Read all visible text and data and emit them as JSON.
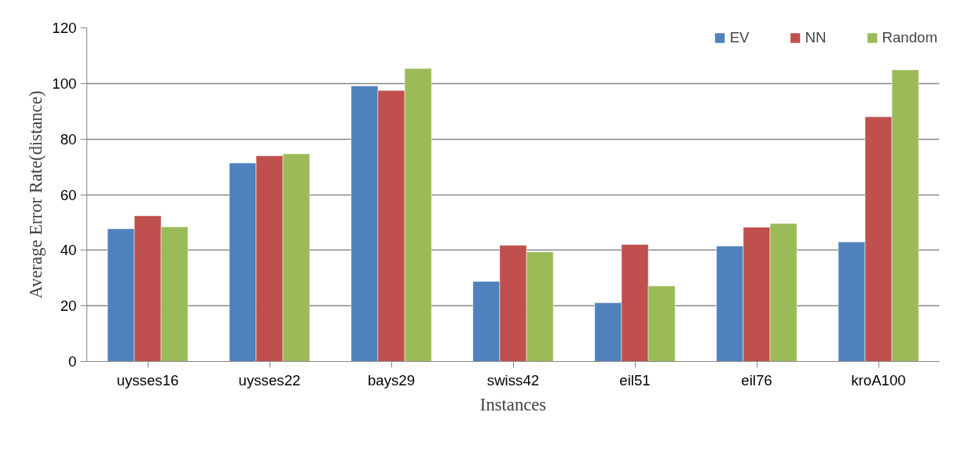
{
  "chart_data": {
    "type": "bar",
    "xlabel": "Instances",
    "ylabel": "Average Error Rate(distance)",
    "categories": [
      "uysses16",
      "uysses22",
      "bays29",
      "swiss42",
      "eil51",
      "eil76",
      "kroA100"
    ],
    "series": [
      {
        "name": "EV",
        "color": "#4f81bd",
        "values": [
          47.7,
          71.4,
          99.1,
          28.8,
          21.1,
          41.5,
          43.0
        ]
      },
      {
        "name": "NN",
        "color": "#c0504d",
        "values": [
          52.4,
          74.0,
          97.5,
          41.8,
          42.1,
          48.3,
          88.0
        ]
      },
      {
        "name": "Random",
        "color": "#9bbb59",
        "values": [
          48.4,
          74.7,
          105.4,
          39.4,
          27.2,
          49.6,
          104.9
        ]
      }
    ],
    "ylim": [
      0,
      120
    ],
    "yticks": [
      0,
      20,
      40,
      60,
      80,
      100,
      120
    ],
    "grid": "y",
    "legend": "top right"
  }
}
